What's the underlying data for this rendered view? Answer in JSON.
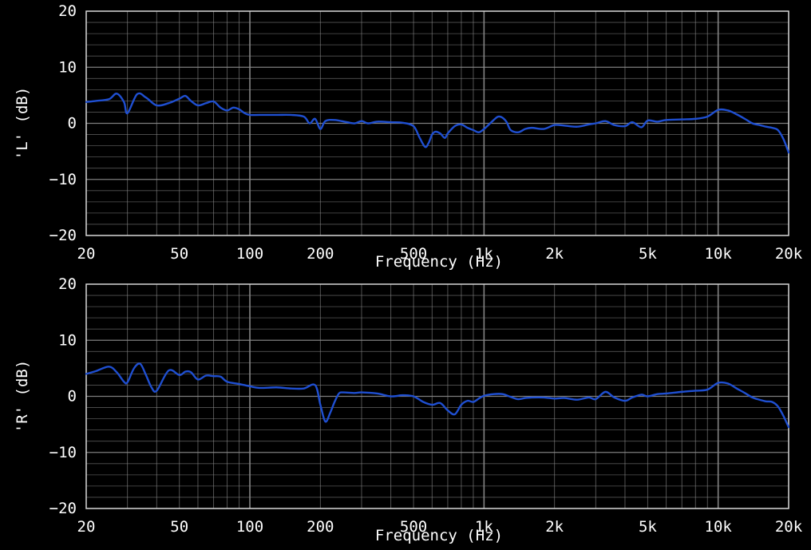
{
  "colors": {
    "background": "#000000",
    "grid": "#8c8c8c",
    "frame": "#d8d8d8",
    "text": "#ffffff",
    "series": "#1f4fd1"
  },
  "chart_data": [
    {
      "type": "line",
      "xscale": "log",
      "xlabel": "Frequency (Hz)",
      "ylabel": "'L' (dB)",
      "xlim": [
        20,
        20000
      ],
      "ylim": [
        -20,
        20
      ],
      "grid": true,
      "x_ticks": [
        {
          "value": 20,
          "label": "20"
        },
        {
          "value": 50,
          "label": "50"
        },
        {
          "value": 100,
          "label": "100"
        },
        {
          "value": 200,
          "label": "200"
        },
        {
          "value": 500,
          "label": "500"
        },
        {
          "value": 1000,
          "label": "1k"
        },
        {
          "value": 2000,
          "label": "2k"
        },
        {
          "value": 5000,
          "label": "5k"
        },
        {
          "value": 10000,
          "label": "10k"
        },
        {
          "value": 20000,
          "label": "20k"
        }
      ],
      "y_ticks": [
        {
          "value": 20,
          "label": "20"
        },
        {
          "value": 10,
          "label": "10"
        },
        {
          "value": 0,
          "label": "0"
        },
        {
          "value": -10,
          "label": "−10"
        },
        {
          "value": -20,
          "label": "−20"
        }
      ],
      "series": [
        {
          "x": [
            20,
            22,
            25,
            27,
            29,
            30,
            33,
            36,
            40,
            45,
            50,
            53,
            56,
            60,
            65,
            70,
            75,
            80,
            85,
            90,
            95,
            100,
            110,
            130,
            150,
            170,
            180,
            190,
            200,
            210,
            230,
            260,
            280,
            300,
            320,
            350,
            400,
            450,
            500,
            530,
            560,
            580,
            600,
            620,
            650,
            680,
            700,
            750,
            800,
            850,
            900,
            950,
            1000,
            1050,
            1100,
            1150,
            1200,
            1250,
            1300,
            1400,
            1500,
            1600,
            1800,
            2000,
            2200,
            2500,
            2800,
            3000,
            3300,
            3600,
            4000,
            4300,
            4700,
            5000,
            5500,
            6000,
            7000,
            8000,
            9000,
            10000,
            11000,
            12000,
            13000,
            14000,
            15000,
            16000,
            17000,
            18000,
            19000,
            20000
          ],
          "y": [
            3.8,
            4.0,
            4.3,
            5.3,
            3.8,
            1.8,
            5.2,
            4.6,
            3.2,
            3.6,
            4.4,
            4.9,
            4.0,
            3.2,
            3.6,
            3.9,
            2.8,
            2.3,
            2.8,
            2.5,
            1.8,
            1.5,
            1.5,
            1.5,
            1.5,
            1.2,
            0.0,
            0.8,
            -1.0,
            0.4,
            0.6,
            0.2,
            0.0,
            0.4,
            0.0,
            0.3,
            0.2,
            0.1,
            -0.5,
            -2.5,
            -4.2,
            -3.5,
            -2.0,
            -1.5,
            -1.8,
            -2.6,
            -1.8,
            -0.5,
            -0.2,
            -0.8,
            -1.2,
            -1.6,
            -1.0,
            -0.2,
            0.6,
            1.2,
            1.0,
            0.2,
            -1.2,
            -1.6,
            -1.0,
            -0.8,
            -1.0,
            -0.3,
            -0.4,
            -0.6,
            -0.2,
            0.0,
            0.4,
            -0.3,
            -0.5,
            0.2,
            -0.7,
            0.5,
            0.3,
            0.6,
            0.7,
            0.8,
            1.2,
            2.4,
            2.3,
            1.6,
            0.8,
            0.0,
            -0.3,
            -0.6,
            -0.8,
            -1.2,
            -2.8,
            -5.2
          ]
        }
      ]
    },
    {
      "type": "line",
      "xscale": "log",
      "xlabel": "Frequency (Hz)",
      "ylabel": "'R' (dB)",
      "xlim": [
        20,
        20000
      ],
      "ylim": [
        -20,
        20
      ],
      "grid": true,
      "x_ticks": [
        {
          "value": 20,
          "label": "20"
        },
        {
          "value": 50,
          "label": "50"
        },
        {
          "value": 100,
          "label": "100"
        },
        {
          "value": 200,
          "label": "200"
        },
        {
          "value": 500,
          "label": "500"
        },
        {
          "value": 1000,
          "label": "1k"
        },
        {
          "value": 2000,
          "label": "2k"
        },
        {
          "value": 5000,
          "label": "5k"
        },
        {
          "value": 10000,
          "label": "10k"
        },
        {
          "value": 20000,
          "label": "20k"
        }
      ],
      "y_ticks": [
        {
          "value": 20,
          "label": "20"
        },
        {
          "value": 10,
          "label": "10"
        },
        {
          "value": 0,
          "label": "0"
        },
        {
          "value": -10,
          "label": "−10"
        },
        {
          "value": -20,
          "label": "−20"
        }
      ],
      "series": [
        {
          "x": [
            20,
            22,
            25,
            27,
            29,
            30,
            32,
            34,
            36,
            38,
            40,
            45,
            50,
            53,
            56,
            60,
            65,
            70,
            75,
            80,
            90,
            100,
            110,
            130,
            150,
            170,
            190,
            200,
            210,
            220,
            230,
            240,
            250,
            280,
            300,
            350,
            400,
            450,
            500,
            550,
            600,
            650,
            700,
            750,
            800,
            850,
            900,
            950,
            1000,
            1100,
            1200,
            1300,
            1400,
            1500,
            1600,
            1800,
            2000,
            2200,
            2500,
            2800,
            3000,
            3300,
            3600,
            4000,
            4300,
            4700,
            5000,
            5500,
            6000,
            7000,
            8000,
            9000,
            10000,
            11000,
            12000,
            13000,
            14000,
            15000,
            16000,
            17000,
            18000,
            19000,
            20000
          ],
          "y": [
            4.0,
            4.5,
            5.3,
            4.3,
            2.6,
            2.5,
            5.0,
            5.8,
            3.8,
            1.6,
            1.0,
            4.6,
            3.8,
            4.4,
            4.3,
            3.0,
            3.7,
            3.6,
            3.5,
            2.6,
            2.2,
            1.8,
            1.5,
            1.6,
            1.4,
            1.4,
            2.0,
            -1.5,
            -4.5,
            -3.0,
            -1.0,
            0.5,
            0.7,
            0.6,
            0.7,
            0.5,
            0.0,
            0.2,
            0.0,
            -1.0,
            -1.5,
            -1.2,
            -2.5,
            -3.2,
            -1.5,
            -0.8,
            -1.0,
            -0.4,
            0.1,
            0.4,
            0.4,
            -0.1,
            -0.5,
            -0.3,
            -0.2,
            -0.2,
            -0.4,
            -0.3,
            -0.6,
            -0.2,
            -0.5,
            0.8,
            -0.2,
            -0.8,
            -0.2,
            0.3,
            0.0,
            0.4,
            0.5,
            0.8,
            1.0,
            1.2,
            2.4,
            2.3,
            1.4,
            0.6,
            -0.2,
            -0.6,
            -0.9,
            -1.0,
            -1.8,
            -3.5,
            -5.5
          ]
        }
      ]
    }
  ]
}
